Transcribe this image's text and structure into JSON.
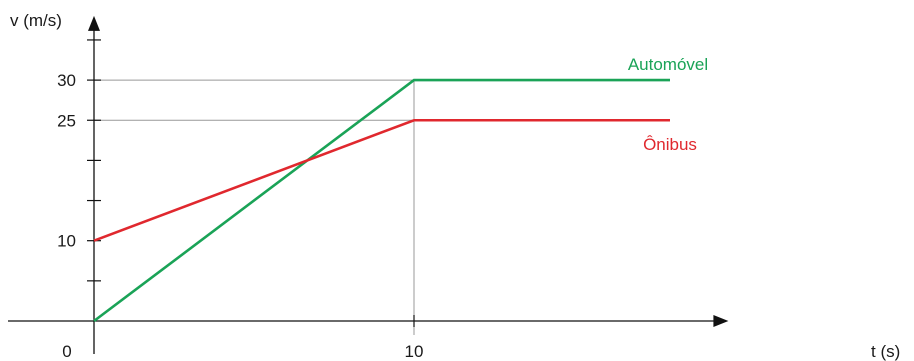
{
  "chart_data": {
    "type": "line",
    "xlabel": "t (s)",
    "ylabel": "v (m/s)",
    "origin_label": "0",
    "x_tick_labels": [
      {
        "value": 10,
        "label": "10"
      }
    ],
    "y_tick_labels": [
      {
        "value": 10,
        "label": "10"
      },
      {
        "value": 25,
        "label": "25"
      },
      {
        "value": 30,
        "label": "30"
      }
    ],
    "y_minor_ticks": [
      5,
      10,
      15,
      20,
      25,
      30,
      35
    ],
    "xlim": [
      0,
      19.7
    ],
    "ylim": [
      0,
      37
    ],
    "grid": false,
    "reference_lines": [
      {
        "orientation": "horizontal",
        "value": 30,
        "x_to": 10
      },
      {
        "orientation": "horizontal",
        "value": 25,
        "x_to": 10
      },
      {
        "orientation": "vertical",
        "value": 10
      }
    ],
    "series": [
      {
        "name": "Automóvel",
        "color": "#1aa357",
        "x": [
          0,
          10,
          18
        ],
        "y": [
          0,
          30,
          30
        ]
      },
      {
        "name": "Ônibus",
        "color": "#e0282e",
        "x": [
          0,
          10,
          18
        ],
        "y": [
          10,
          25,
          25
        ]
      }
    ]
  }
}
